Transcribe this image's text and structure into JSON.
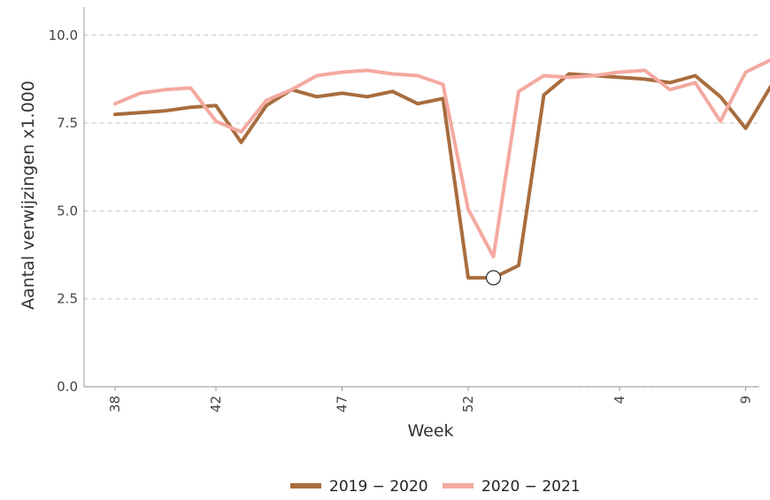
{
  "chart_data": {
    "type": "line",
    "xlabel": "Week",
    "ylabel": "Aantal verwijzingen x1.000",
    "ylim": [
      0,
      10.8
    ],
    "yticks": [
      0.0,
      2.5,
      5.0,
      7.5,
      10.0
    ],
    "ytick_labels": [
      "0.0",
      "2.5",
      "5.0",
      "7.5",
      "10.0"
    ],
    "x": [
      "38",
      "39",
      "40",
      "41",
      "42",
      "43",
      "44",
      "45",
      "46",
      "47",
      "48",
      "49",
      "50",
      "51",
      "52",
      "53",
      "54",
      "1",
      "2",
      "3",
      "4",
      "5",
      "6",
      "7",
      "8",
      "9",
      "10"
    ],
    "xtick_labels": [
      "38",
      "42",
      "47",
      "52",
      "4",
      "9"
    ],
    "grid": "horizontal dashed",
    "legend_position": "bottom",
    "highlight_marker": {
      "x": "53",
      "y": 3.1
    },
    "series": [
      {
        "name": "2019 − 2020",
        "color": "#a86d3e",
        "values": [
          7.75,
          7.8,
          7.85,
          7.95,
          8.0,
          6.95,
          8.0,
          8.45,
          8.25,
          8.35,
          8.25,
          8.4,
          8.05,
          8.2,
          3.1,
          3.1,
          3.45,
          8.3,
          8.9,
          8.85,
          8.8,
          8.75,
          8.65,
          8.85,
          8.25,
          7.35,
          8.55
        ]
      },
      {
        "name": "2020 − 2021",
        "color": "#f4a9a0",
        "values": [
          8.05,
          8.35,
          8.45,
          8.5,
          7.55,
          7.25,
          8.15,
          8.45,
          8.85,
          8.95,
          9.0,
          8.9,
          8.85,
          8.6,
          5.05,
          3.7,
          8.4,
          8.85,
          8.8,
          8.85,
          8.95,
          9.0,
          8.45,
          8.65,
          7.55,
          8.95,
          9.3
        ]
      }
    ]
  }
}
